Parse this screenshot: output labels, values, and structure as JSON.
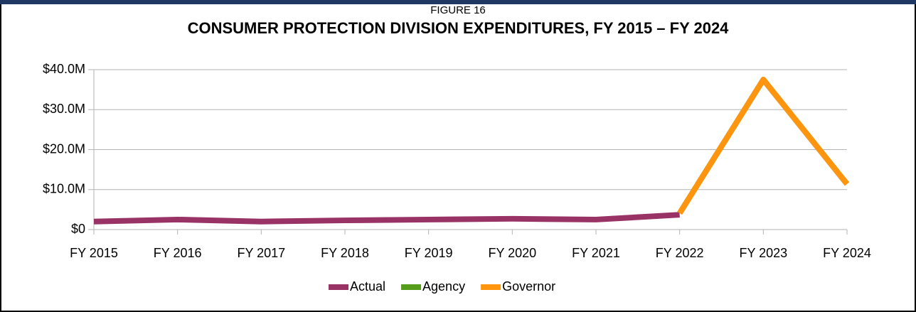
{
  "chart_data": {
    "type": "line",
    "subtitle": "FIGURE 16",
    "title": "CONSUMER PROTECTION DIVISION EXPENDITURES, FY 2015 – FY 2024",
    "categories": [
      "FY 2015",
      "FY 2016",
      "FY 2017",
      "FY 2018",
      "FY 2019",
      "FY 2020",
      "FY 2021",
      "FY 2022",
      "FY 2023",
      "FY 2024"
    ],
    "series": [
      {
        "name": "Actual",
        "color": "#993366",
        "values": [
          2000000,
          2500000,
          2000000,
          2300000,
          2500000,
          2700000,
          2500000,
          3700000,
          null,
          null
        ]
      },
      {
        "name": "Agency",
        "color": "#579d1c",
        "values": [
          null,
          null,
          null,
          null,
          null,
          null,
          null,
          4100000,
          37500000,
          11400000
        ]
      },
      {
        "name": "Governor",
        "color": "#ff950e",
        "values": [
          null,
          null,
          null,
          null,
          null,
          null,
          null,
          4100000,
          37500000,
          11400000
        ]
      }
    ],
    "ylim": [
      0,
      40000000
    ],
    "yticks": [
      {
        "value": 0,
        "label": "$0"
      },
      {
        "value": 10000000,
        "label": "$10.0M"
      },
      {
        "value": 20000000,
        "label": "$20.0M"
      },
      {
        "value": 30000000,
        "label": "$30.0M"
      },
      {
        "value": 40000000,
        "label": "$40.0M"
      }
    ],
    "grid": true,
    "legend": "bottom"
  }
}
